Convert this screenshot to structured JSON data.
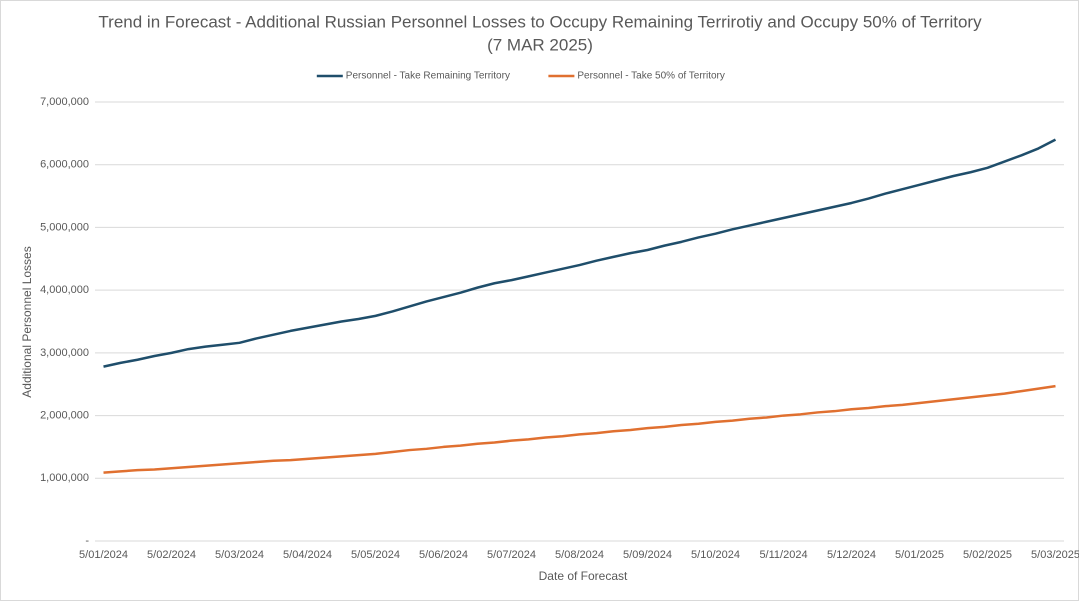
{
  "chart_data": {
    "type": "line",
    "title": "Trend in Forecast - Additional Russian Personnel Losses to Occupy Remaining Terrirotiy and Occupy 50% of Territory",
    "subtitle": "(7 MAR 2025)",
    "x_label": "Date of Forecast",
    "y_label": "Additional Personnel Losses",
    "categories": [
      "5/01/2024",
      null,
      null,
      null,
      "5/02/2024",
      null,
      null,
      null,
      "5/03/2024",
      null,
      null,
      null,
      "5/04/2024",
      null,
      null,
      null,
      "5/05/2024",
      null,
      null,
      null,
      "5/06/2024",
      null,
      null,
      null,
      "5/07/2024",
      null,
      null,
      null,
      "5/08/2024",
      null,
      null,
      null,
      "5/09/2024",
      null,
      null,
      null,
      "5/10/2024",
      null,
      null,
      null,
      "5/11/2024",
      null,
      null,
      null,
      "5/12/2024",
      null,
      null,
      null,
      "5/01/2025",
      null,
      null,
      null,
      "5/02/2025",
      null,
      null,
      null,
      "5/03/2025"
    ],
    "series": [
      {
        "name": "Personnel - Take Remaining Territory",
        "color": "#1f4e6b",
        "values": [
          2780000,
          2840000,
          2890000,
          2950000,
          3000000,
          3060000,
          3100000,
          3130000,
          3160000,
          3230000,
          3290000,
          3350000,
          3400000,
          3450000,
          3500000,
          3540000,
          3590000,
          3660000,
          3740000,
          3820000,
          3890000,
          3960000,
          4040000,
          4110000,
          4160000,
          4220000,
          4280000,
          4340000,
          4400000,
          4470000,
          4530000,
          4590000,
          4640000,
          4710000,
          4770000,
          4840000,
          4900000,
          4970000,
          5030000,
          5090000,
          5150000,
          5210000,
          5270000,
          5330000,
          5390000,
          5460000,
          5540000,
          5610000,
          5680000,
          5750000,
          5820000,
          5880000,
          5950000,
          6050000,
          6150000,
          6260000,
          6400000
        ]
      },
      {
        "name": "Personnel - Take 50% of Territory",
        "color": "#e07030",
        "values": [
          1090000,
          1110000,
          1130000,
          1140000,
          1160000,
          1180000,
          1200000,
          1220000,
          1240000,
          1260000,
          1280000,
          1290000,
          1310000,
          1330000,
          1350000,
          1370000,
          1390000,
          1420000,
          1450000,
          1470000,
          1500000,
          1520000,
          1550000,
          1570000,
          1600000,
          1620000,
          1650000,
          1670000,
          1700000,
          1720000,
          1750000,
          1770000,
          1800000,
          1820000,
          1850000,
          1870000,
          1900000,
          1920000,
          1950000,
          1970000,
          2000000,
          2020000,
          2050000,
          2070000,
          2100000,
          2120000,
          2150000,
          2170000,
          2200000,
          2230000,
          2260000,
          2290000,
          2320000,
          2350000,
          2390000,
          2430000,
          2470000
        ]
      }
    ],
    "ylim": [
      0,
      7000000
    ],
    "yticks": [
      {
        "value": 0,
        "label": "-"
      },
      {
        "value": 1000000,
        "label": "1,000,000"
      },
      {
        "value": 2000000,
        "label": "2,000,000"
      },
      {
        "value": 3000000,
        "label": "3,000,000"
      },
      {
        "value": 4000000,
        "label": "4,000,000"
      },
      {
        "value": 5000000,
        "label": "5,000,000"
      },
      {
        "value": 6000000,
        "label": "6,000,000"
      },
      {
        "value": 7000000,
        "label": "7,000,000"
      }
    ],
    "grid": true,
    "legend": "top"
  }
}
